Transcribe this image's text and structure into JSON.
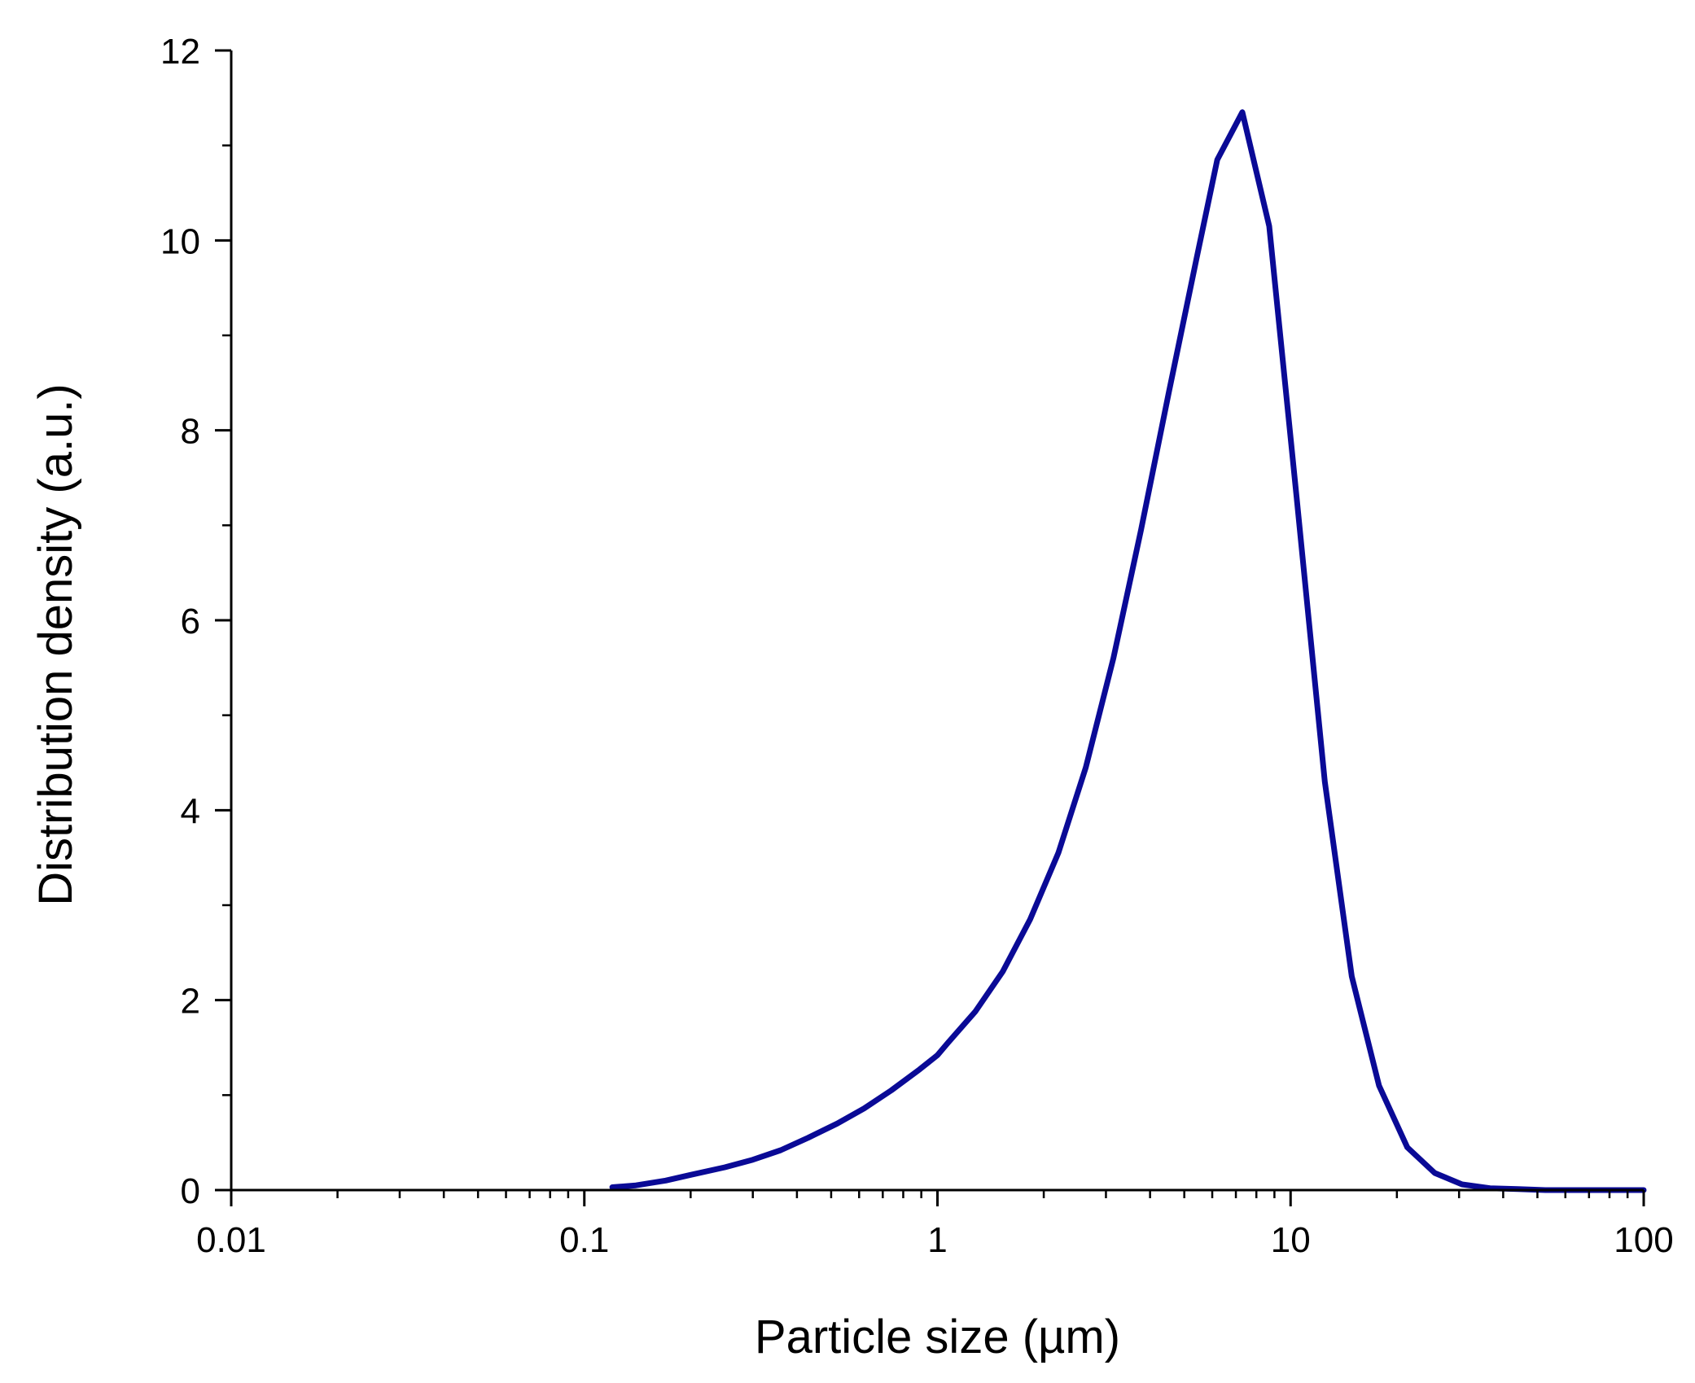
{
  "chart_data": {
    "type": "line",
    "title": "",
    "xlabel": "Particle size (µm)",
    "ylabel": "Distribution density (a.u.)",
    "xscale": "log",
    "xlim": [
      0.01,
      100
    ],
    "ylim": [
      0,
      12
    ],
    "x_ticks": [
      0.01,
      0.1,
      1,
      10,
      100
    ],
    "x_tick_labels": [
      "0.01",
      "0.1",
      "1",
      "10",
      "100"
    ],
    "y_ticks": [
      0,
      2,
      4,
      6,
      8,
      10,
      12
    ],
    "y_tick_labels": [
      "0",
      "2",
      "4",
      "6",
      "8",
      "10",
      "12"
    ],
    "grid": false,
    "legend": "none",
    "series": [
      {
        "color": "#0a0a96",
        "x": [
          0.12,
          0.14,
          0.17,
          0.2,
          0.25,
          0.3,
          0.36,
          0.43,
          0.52,
          0.62,
          0.74,
          0.89,
          1.0,
          1.07,
          1.28,
          1.53,
          1.83,
          2.2,
          2.63,
          3.15,
          3.77,
          4.52,
          5.41,
          6.2,
          7.3,
          8.7,
          10.4,
          12.5,
          14.9,
          17.8,
          21.4,
          25.6,
          30.6,
          36.7,
          44.0,
          52.7,
          63.0,
          75.0,
          90.0,
          100.0
        ],
        "y": [
          0.03,
          0.05,
          0.1,
          0.16,
          0.24,
          0.32,
          0.42,
          0.55,
          0.7,
          0.86,
          1.05,
          1.27,
          1.42,
          1.55,
          1.88,
          2.3,
          2.85,
          3.55,
          4.45,
          5.6,
          6.95,
          8.4,
          9.8,
          10.85,
          11.35,
          10.15,
          7.3,
          4.3,
          2.25,
          1.1,
          0.45,
          0.18,
          0.06,
          0.02,
          0.01,
          0.0,
          0.0,
          0.0,
          0.0,
          0.0
        ]
      }
    ]
  }
}
